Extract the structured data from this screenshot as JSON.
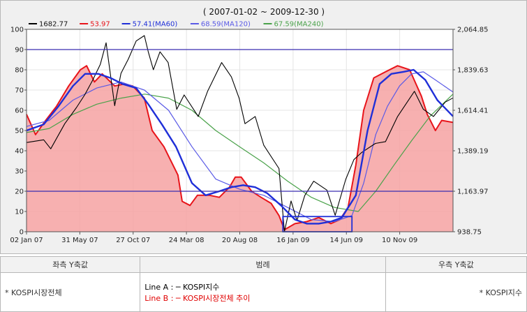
{
  "chart_data": {
    "type": "line",
    "title": "( 2007-01-02 ~ 2009-12-30 )",
    "legend": [
      {
        "key": "kospi",
        "label": "1682.77",
        "color": "#000000"
      },
      {
        "key": "ratio",
        "label": "53.97",
        "color": "#e8141a"
      },
      {
        "key": "ma60",
        "label": "57.41(MA60)",
        "color": "#1f2fd8"
      },
      {
        "key": "ma120",
        "label": "68.59(MA120)",
        "color": "#5a5ae6"
      },
      {
        "key": "ma240",
        "label": "67.59(MA240)",
        "color": "#4aa24a"
      }
    ],
    "legend_position": "top",
    "x_ticks": [
      "02 Jan 07",
      "31 May 07",
      "27 Oct 07",
      "24 Mar 08",
      "20 Aug 08",
      "16 Jan 09",
      "14 Jun 09",
      "10 Nov 09"
    ],
    "x_range": [
      "2007-01-02",
      "2009-12-30"
    ],
    "y_left": {
      "ticks": [
        0,
        10,
        20,
        30,
        40,
        50,
        60,
        70,
        80,
        90,
        100
      ],
      "range": [
        0,
        100
      ]
    },
    "y_right": {
      "ticks": [
        "938.75",
        "1,163.97",
        "1,389.19",
        "1,614.41",
        "1,839.63",
        "2,064.85"
      ],
      "range": [
        938.75,
        2064.85
      ]
    },
    "reference_lines": [
      20,
      90
    ],
    "highlight_box": {
      "x": [
        "2008-10-20",
        "2009-04-15"
      ],
      "y": [
        0,
        7.5
      ],
      "color": "#1f2fd8"
    },
    "series": [
      {
        "name": "1682.77",
        "key": "kospi",
        "axis": "right",
        "color": "#000000",
        "points": [
          [
            "2007-01-02",
            1435
          ],
          [
            "2007-02-15",
            1450
          ],
          [
            "2007-03-05",
            1400
          ],
          [
            "2007-04-10",
            1540
          ],
          [
            "2007-05-10",
            1630
          ],
          [
            "2007-05-31",
            1700
          ],
          [
            "2007-06-20",
            1780
          ],
          [
            "2007-07-10",
            1870
          ],
          [
            "2007-07-25",
            1990
          ],
          [
            "2007-08-16",
            1640
          ],
          [
            "2007-09-01",
            1820
          ],
          [
            "2007-09-20",
            1900
          ],
          [
            "2007-10-10",
            2000
          ],
          [
            "2007-10-31",
            2030
          ],
          [
            "2007-11-10",
            1940
          ],
          [
            "2007-11-23",
            1840
          ],
          [
            "2007-12-10",
            1940
          ],
          [
            "2007-12-31",
            1880
          ],
          [
            "2008-01-22",
            1620
          ],
          [
            "2008-02-10",
            1700
          ],
          [
            "2008-03-17",
            1580
          ],
          [
            "2008-04-10",
            1720
          ],
          [
            "2008-05-16",
            1880
          ],
          [
            "2008-06-10",
            1800
          ],
          [
            "2008-06-30",
            1680
          ],
          [
            "2008-07-15",
            1540
          ],
          [
            "2008-08-10",
            1580
          ],
          [
            "2008-09-01",
            1420
          ],
          [
            "2008-10-10",
            1290
          ],
          [
            "2008-10-24",
            940
          ],
          [
            "2008-11-10",
            1110
          ],
          [
            "2008-11-25",
            1000
          ],
          [
            "2008-12-15",
            1140
          ],
          [
            "2009-01-07",
            1220
          ],
          [
            "2009-02-10",
            1170
          ],
          [
            "2009-03-03",
            1030
          ],
          [
            "2009-03-30",
            1230
          ],
          [
            "2009-04-20",
            1340
          ],
          [
            "2009-05-10",
            1380
          ],
          [
            "2009-06-14",
            1430
          ],
          [
            "2009-07-10",
            1440
          ],
          [
            "2009-08-10",
            1580
          ],
          [
            "2009-09-22",
            1720
          ],
          [
            "2009-10-15",
            1620
          ],
          [
            "2009-11-10",
            1580
          ],
          [
            "2009-12-10",
            1660
          ],
          [
            "2009-12-30",
            1683
          ]
        ]
      },
      {
        "name": "53.97",
        "key": "ratio",
        "axis": "left",
        "color": "#e8141a",
        "fill": true,
        "points": [
          [
            "2007-01-02",
            58
          ],
          [
            "2007-01-25",
            48
          ],
          [
            "2007-02-20",
            55
          ],
          [
            "2007-03-20",
            62
          ],
          [
            "2007-04-20",
            72
          ],
          [
            "2007-05-20",
            80
          ],
          [
            "2007-06-05",
            82
          ],
          [
            "2007-06-25",
            74
          ],
          [
            "2007-07-15",
            78
          ],
          [
            "2007-08-16",
            72
          ],
          [
            "2007-09-10",
            73
          ],
          [
            "2007-10-01",
            72
          ],
          [
            "2007-10-31",
            66
          ],
          [
            "2007-11-20",
            50
          ],
          [
            "2007-12-20",
            42
          ],
          [
            "2008-01-25",
            28
          ],
          [
            "2008-02-05",
            15
          ],
          [
            "2008-02-25",
            13
          ],
          [
            "2008-03-15",
            18
          ],
          [
            "2008-04-15",
            18
          ],
          [
            "2008-05-10",
            17
          ],
          [
            "2008-06-05",
            22
          ],
          [
            "2008-06-20",
            27
          ],
          [
            "2008-07-05",
            27
          ],
          [
            "2008-08-01",
            20
          ],
          [
            "2008-08-25",
            17
          ],
          [
            "2008-09-20",
            14
          ],
          [
            "2008-10-10",
            8
          ],
          [
            "2008-10-24",
            1
          ],
          [
            "2008-11-20",
            4
          ],
          [
            "2008-12-20",
            5
          ],
          [
            "2009-01-20",
            7
          ],
          [
            "2009-02-20",
            4
          ],
          [
            "2009-03-15",
            6
          ],
          [
            "2009-04-05",
            12
          ],
          [
            "2009-04-25",
            33
          ],
          [
            "2009-05-15",
            60
          ],
          [
            "2009-06-10",
            76
          ],
          [
            "2009-07-10",
            79
          ],
          [
            "2009-08-10",
            82
          ],
          [
            "2009-09-10",
            80
          ],
          [
            "2009-10-10",
            67
          ],
          [
            "2009-10-25",
            58
          ],
          [
            "2009-11-15",
            50
          ],
          [
            "2009-12-01",
            55
          ],
          [
            "2009-12-30",
            54
          ]
        ]
      },
      {
        "name": "57.41(MA60)",
        "key": "ma60",
        "axis": "left",
        "color": "#1f2fd8",
        "width": 2.4,
        "points": [
          [
            "2007-01-02",
            50
          ],
          [
            "2007-02-15",
            53
          ],
          [
            "2007-03-25",
            62
          ],
          [
            "2007-05-01",
            72
          ],
          [
            "2007-06-01",
            78
          ],
          [
            "2007-07-05",
            78
          ],
          [
            "2007-08-05",
            76
          ],
          [
            "2007-09-05",
            73
          ],
          [
            "2007-10-10",
            71
          ],
          [
            "2007-11-10",
            63
          ],
          [
            "2007-12-15",
            53
          ],
          [
            "2008-01-20",
            42
          ],
          [
            "2008-03-01",
            24
          ],
          [
            "2008-04-05",
            18
          ],
          [
            "2008-05-10",
            20
          ],
          [
            "2008-06-10",
            22
          ],
          [
            "2008-07-10",
            23
          ],
          [
            "2008-08-10",
            22
          ],
          [
            "2008-09-10",
            19
          ],
          [
            "2008-10-15",
            13
          ],
          [
            "2008-11-20",
            6
          ],
          [
            "2008-12-20",
            4
          ],
          [
            "2009-01-20",
            4
          ],
          [
            "2009-02-20",
            5
          ],
          [
            "2009-03-20",
            7
          ],
          [
            "2009-04-25",
            18
          ],
          [
            "2009-05-25",
            50
          ],
          [
            "2009-06-25",
            73
          ],
          [
            "2009-07-25",
            78
          ],
          [
            "2009-08-25",
            79
          ],
          [
            "2009-09-20",
            80
          ],
          [
            "2009-10-20",
            75
          ],
          [
            "2009-11-20",
            65
          ],
          [
            "2009-12-30",
            57
          ]
        ]
      },
      {
        "name": "68.59(MA120)",
        "key": "ma120",
        "axis": "left",
        "color": "#5a5ae6",
        "width": 1.2,
        "points": [
          [
            "2007-01-02",
            52
          ],
          [
            "2007-03-01",
            55
          ],
          [
            "2007-05-01",
            65
          ],
          [
            "2007-07-01",
            71
          ],
          [
            "2007-09-01",
            74
          ],
          [
            "2007-10-31",
            70
          ],
          [
            "2008-01-01",
            60
          ],
          [
            "2008-03-01",
            42
          ],
          [
            "2008-05-01",
            26
          ],
          [
            "2008-07-01",
            21
          ],
          [
            "2008-09-01",
            18
          ],
          [
            "2008-11-01",
            12
          ],
          [
            "2009-01-01",
            6
          ],
          [
            "2009-03-01",
            5
          ],
          [
            "2009-04-15",
            8
          ],
          [
            "2009-05-15",
            24
          ],
          [
            "2009-06-15",
            48
          ],
          [
            "2009-07-15",
            62
          ],
          [
            "2009-08-15",
            72
          ],
          [
            "2009-09-15",
            78
          ],
          [
            "2009-10-15",
            79
          ],
          [
            "2009-11-15",
            75
          ],
          [
            "2009-12-30",
            69
          ]
        ]
      },
      {
        "name": "67.59(MA240)",
        "key": "ma240",
        "axis": "left",
        "color": "#4aa24a",
        "width": 1.2,
        "points": [
          [
            "2007-01-02",
            49
          ],
          [
            "2007-03-01",
            51
          ],
          [
            "2007-05-01",
            58
          ],
          [
            "2007-07-01",
            63
          ],
          [
            "2007-09-01",
            66
          ],
          [
            "2007-11-01",
            68
          ],
          [
            "2008-01-01",
            66
          ],
          [
            "2008-03-01",
            60
          ],
          [
            "2008-05-01",
            50
          ],
          [
            "2008-07-01",
            42
          ],
          [
            "2008-09-01",
            34
          ],
          [
            "2008-11-01",
            25
          ],
          [
            "2009-01-01",
            17
          ],
          [
            "2009-03-01",
            12
          ],
          [
            "2009-05-01",
            10
          ],
          [
            "2009-06-15",
            20
          ],
          [
            "2009-08-01",
            33
          ],
          [
            "2009-09-15",
            45
          ],
          [
            "2009-11-01",
            57
          ],
          [
            "2009-12-30",
            68
          ]
        ]
      }
    ]
  },
  "info_table": {
    "left_header": "좌측 Y축값",
    "center_header": "범례",
    "right_header": "우측 Y축값",
    "left_value": "* KOSPI시장전체",
    "line_a": "Line A : ─ KOSPI지수",
    "line_b": "Line B : ─ KOSPI시장전체 추이",
    "right_value": "* KOSPI지수"
  }
}
